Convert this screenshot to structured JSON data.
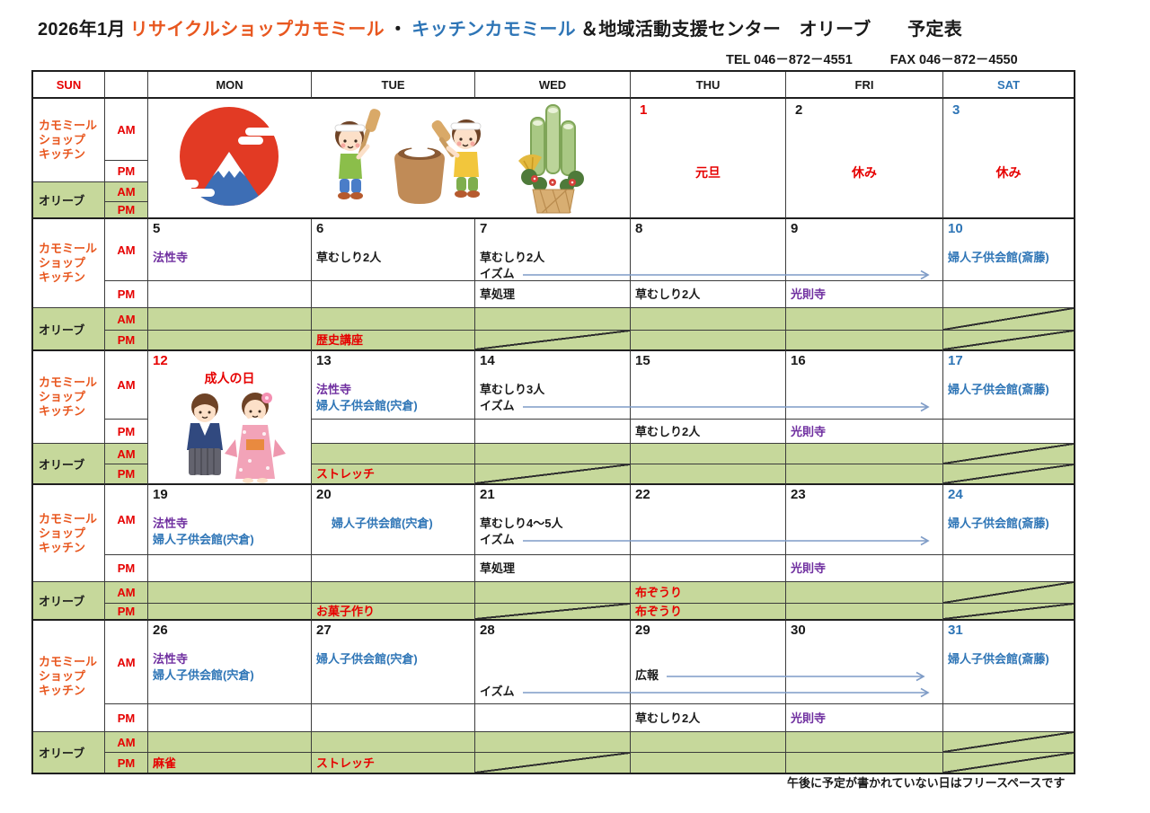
{
  "title": {
    "month": "2026年1月",
    "shop": "リサイクルショップカモミール",
    "separator": "・",
    "kitchen": "キッチンカモミール",
    "rest": "＆地域活動支援センター　オリーブ　　予定表"
  },
  "contact": {
    "tel": "TEL 046－872－4551",
    "fax": "FAX 046－872－4550"
  },
  "header": {
    "days": [
      "SUN",
      "MON",
      "TUE",
      "WED",
      "THU",
      "FRI",
      "SAT"
    ]
  },
  "row_labels": {
    "chamomile": "カモミール\nショップ\nキッチン",
    "olive": "オリーブ",
    "am": "AM",
    "pm": "PM"
  },
  "footer_note": "午後に予定が書かれていない日はフリースペースです",
  "colors": {
    "red": "#E60000",
    "orange": "#E8571F",
    "blue": "#2E75B6",
    "purple": "#7030A0",
    "green_bg": "#C6D89B",
    "arrow": "#7F9CC7"
  },
  "illustration_names": [
    "sunrise",
    "mochi-pounding",
    "kadomatsu",
    "coming-of-age-couple"
  ],
  "weeks": [
    {
      "type": "holiday_week",
      "illustrations": [
        "sunrise",
        "mochi-pounding",
        "kadomatsu"
      ],
      "days": [
        {
          "num": "1",
          "num_color": "red",
          "label": "元旦"
        },
        {
          "num": "2",
          "num_color": "black",
          "label": "休み"
        },
        {
          "num": "3",
          "num_color": "blue",
          "label": "休み"
        }
      ]
    },
    {
      "type": "normal",
      "days": {
        "mon": {
          "num": "5",
          "am": [
            {
              "text": "法性寺",
              "color": "purple"
            }
          ]
        },
        "tue": {
          "num": "6",
          "am": [
            {
              "text": "草むしり2人",
              "color": "black"
            }
          ],
          "opm": [
            {
              "text": "歴史講座",
              "color": "red"
            }
          ]
        },
        "wed": {
          "num": "7",
          "am": [
            {
              "text": "草むしり2人",
              "color": "black"
            },
            {
              "text": "イズム",
              "color": "black",
              "arrow": "wed"
            }
          ],
          "pm": [
            {
              "text": "草処理",
              "color": "black"
            }
          ],
          "opm_diag": true
        },
        "thu": {
          "num": "8",
          "pm": [
            {
              "text": "草むしり2人",
              "color": "black"
            }
          ]
        },
        "fri": {
          "num": "9",
          "pm": [
            {
              "text": "光則寺",
              "color": "purple"
            }
          ]
        },
        "sat": {
          "num": "10",
          "num_color": "blue",
          "am": [
            {
              "text": "婦人子供会館(斎藤)",
              "color": "blue"
            }
          ],
          "oam_diag": true,
          "opm_diag": true
        }
      }
    },
    {
      "type": "normal",
      "days": {
        "mon": {
          "num": "12",
          "num_color": "red",
          "merged": true,
          "title": "成人の日",
          "illustration": "coming-of-age-couple"
        },
        "tue": {
          "num": "13",
          "am": [
            {
              "text": "法性寺",
              "color": "purple"
            },
            {
              "text": "婦人子供会館(宍倉)",
              "color": "blue"
            }
          ],
          "opm": [
            {
              "text": "ストレッチ",
              "color": "red"
            }
          ]
        },
        "wed": {
          "num": "14",
          "am": [
            {
              "text": "草むしり3人",
              "color": "black"
            },
            {
              "text": "イズム",
              "color": "black",
              "arrow": "wed"
            }
          ],
          "opm_diag": true
        },
        "thu": {
          "num": "15",
          "pm": [
            {
              "text": "草むしり2人",
              "color": "black"
            }
          ]
        },
        "fri": {
          "num": "16",
          "pm": [
            {
              "text": "光則寺",
              "color": "purple"
            }
          ]
        },
        "sat": {
          "num": "17",
          "num_color": "blue",
          "am": [
            {
              "text": "婦人子供会館(斎藤)",
              "color": "blue"
            }
          ],
          "oam_diag": true,
          "opm_diag": true
        }
      }
    },
    {
      "type": "normal",
      "days": {
        "mon": {
          "num": "19",
          "am": [
            {
              "text": "法性寺",
              "color": "purple"
            },
            {
              "text": "婦人子供会館(宍倉)",
              "color": "blue"
            }
          ]
        },
        "tue": {
          "num": "20",
          "am": [
            {
              "text": "婦人子供会館(宍倉)",
              "color": "blue",
              "indent": true
            }
          ],
          "opm": [
            {
              "text": "お菓子作り",
              "color": "red"
            }
          ]
        },
        "wed": {
          "num": "21",
          "am": [
            {
              "text": "草むしり4～5人",
              "color": "black"
            },
            {
              "text": "イズム",
              "color": "black",
              "arrow": "wed"
            }
          ],
          "pm": [
            {
              "text": "草処理",
              "color": "black"
            }
          ],
          "opm_diag": true
        },
        "thu": {
          "num": "22",
          "oam": [
            {
              "text": "布ぞうり",
              "color": "red"
            }
          ],
          "opm": [
            {
              "text": "布ぞうり",
              "color": "red"
            }
          ]
        },
        "fri": {
          "num": "23",
          "pm": [
            {
              "text": "光則寺",
              "color": "purple"
            }
          ]
        },
        "sat": {
          "num": "24",
          "num_color": "blue",
          "am": [
            {
              "text": "婦人子供会館(斎藤)",
              "color": "blue"
            }
          ],
          "oam_diag": true,
          "opm_diag": true
        }
      }
    },
    {
      "type": "normal",
      "days": {
        "mon": {
          "num": "26",
          "am": [
            {
              "text": "法性寺",
              "color": "purple"
            },
            {
              "text": "婦人子供会館(宍倉)",
              "color": "blue"
            }
          ],
          "opm": [
            {
              "text": "麻雀",
              "color": "red"
            }
          ]
        },
        "tue": {
          "num": "27",
          "am": [
            {
              "text": "婦人子供会館(宍倉)",
              "color": "blue"
            }
          ],
          "opm": [
            {
              "text": "ストレッチ",
              "color": "red"
            }
          ]
        },
        "wed": {
          "num": "28",
          "am": [
            {
              "text": "",
              "color": "black"
            },
            {
              "text": "",
              "color": "black"
            },
            {
              "text": "イズム",
              "color": "black",
              "arrow": "wed"
            }
          ],
          "opm_diag": true
        },
        "thu": {
          "num": "29",
          "am": [
            {
              "text": "",
              "color": "black"
            },
            {
              "text": "広報",
              "color": "black",
              "arrow": "thu"
            }
          ],
          "pm": [
            {
              "text": "草むしり2人",
              "color": "black"
            }
          ]
        },
        "fri": {
          "num": "30",
          "pm": [
            {
              "text": "光則寺",
              "color": "purple"
            }
          ]
        },
        "sat": {
          "num": "31",
          "num_color": "blue",
          "am": [
            {
              "text": "婦人子供会館(斎藤)",
              "color": "blue"
            }
          ],
          "oam_diag": true,
          "opm_diag": true
        }
      }
    }
  ]
}
